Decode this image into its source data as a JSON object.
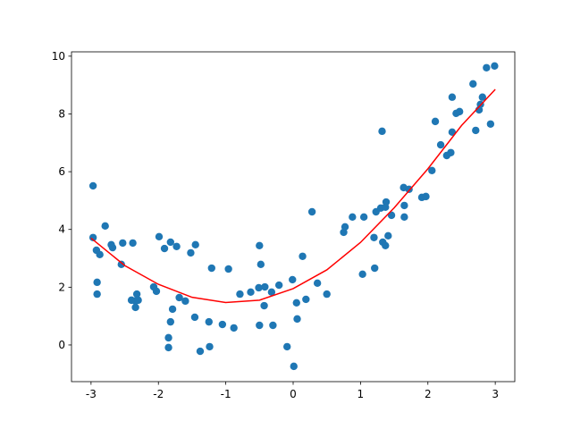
{
  "chart_data": {
    "type": "scatter",
    "xlim": [
      -3.29,
      3.29
    ],
    "ylim": [
      -1.27,
      10.15
    ],
    "xticks": [
      -3,
      -2,
      -1,
      0,
      1,
      2,
      3
    ],
    "yticks": [
      0,
      2,
      4,
      6,
      8,
      10
    ],
    "series": [
      {
        "type": "scatter",
        "color": "#1f77b4",
        "x": [
          -2.97,
          -2.97,
          -2.92,
          -2.87,
          -2.91,
          -2.91,
          -2.79,
          -2.7,
          -2.68,
          -2.53,
          -2.55,
          -2.38,
          -2.4,
          -2.32,
          -2.34,
          -2.3,
          -2.34,
          -2.07,
          -2.03,
          -1.99,
          -1.91,
          -1.82,
          -1.73,
          -1.79,
          -1.82,
          -1.85,
          -1.85,
          -1.69,
          -1.6,
          -1.52,
          -1.45,
          -1.46,
          -1.38,
          -1.25,
          -1.24,
          -1.21,
          -1.05,
          -0.96,
          -0.88,
          -0.79,
          -0.63,
          -0.51,
          -0.5,
          -0.48,
          -0.5,
          -0.42,
          -0.43,
          -0.32,
          -0.3,
          -0.21,
          -0.09,
          -0.01,
          0.01,
          0.05,
          0.06,
          0.14,
          0.19,
          0.28,
          0.36,
          0.5,
          0.75,
          0.77,
          0.88,
          1.03,
          1.05,
          1.2,
          1.21,
          1.23,
          1.3,
          1.32,
          1.33,
          1.37,
          1.37,
          1.38,
          1.41,
          1.46,
          1.64,
          1.65,
          1.65,
          1.72,
          1.91,
          1.97,
          2.06,
          2.11,
          2.19,
          2.28,
          2.34,
          2.36,
          2.36,
          2.42,
          2.47,
          2.67,
          2.71,
          2.76,
          2.78,
          2.81,
          2.87,
          2.93,
          2.99
        ],
        "values": [
          5.51,
          3.72,
          3.28,
          3.13,
          2.17,
          1.76,
          4.12,
          3.47,
          3.37,
          3.53,
          2.79,
          3.53,
          1.55,
          1.76,
          1.52,
          1.55,
          1.3,
          2.01,
          1.86,
          3.75,
          3.34,
          3.56,
          3.41,
          1.24,
          0.8,
          0.25,
          -0.09,
          1.64,
          1.52,
          3.19,
          3.47,
          0.96,
          -0.22,
          0.8,
          -0.06,
          2.66,
          0.71,
          2.63,
          0.59,
          1.76,
          1.83,
          1.98,
          3.44,
          2.79,
          0.68,
          2.01,
          1.36,
          1.83,
          0.68,
          2.07,
          -0.06,
          2.26,
          -0.74,
          1.46,
          0.9,
          3.07,
          1.58,
          4.61,
          2.14,
          1.76,
          3.9,
          4.09,
          4.43,
          2.45,
          4.43,
          3.72,
          2.66,
          4.61,
          4.74,
          7.4,
          3.56,
          3.44,
          4.77,
          4.95,
          3.78,
          4.49,
          5.45,
          4.83,
          4.43,
          5.39,
          5.11,
          5.14,
          6.04,
          7.74,
          6.93,
          6.56,
          6.66,
          7.37,
          8.58,
          8.02,
          8.08,
          9.04,
          7.43,
          8.14,
          8.33,
          8.58,
          9.6,
          7.65,
          9.66
        ]
      },
      {
        "type": "line",
        "color": "#ff0000",
        "x": [
          -3,
          -2.5,
          -2,
          -1.5,
          -1,
          -0.5,
          0,
          0.5,
          1,
          1.5,
          2,
          2.5,
          3
        ],
        "values": [
          3.7,
          2.75,
          2.1,
          1.65,
          1.47,
          1.55,
          1.95,
          2.6,
          3.55,
          4.75,
          6.1,
          7.6,
          8.85
        ]
      }
    ]
  }
}
